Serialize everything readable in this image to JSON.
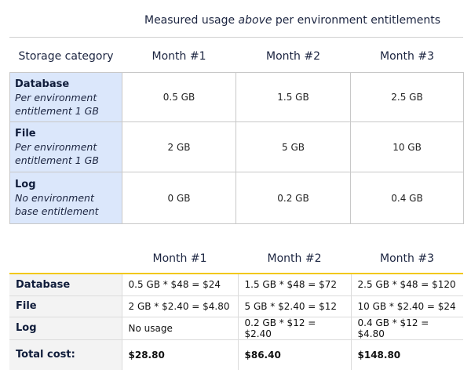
{
  "usage_table": {
    "caption": {
      "before": "Measured usage ",
      "emphasis": "above",
      "after": " per environment entitlements"
    },
    "columns": [
      "Storage category",
      "Month #1",
      "Month #2",
      "Month #3"
    ],
    "rows": [
      {
        "name": "Database",
        "note": "Per environment entitlement 1 GB",
        "values": [
          "0.5 GB",
          "1.5 GB",
          "2.5 GB"
        ]
      },
      {
        "name": "File",
        "note": "Per environment entitlement 1 GB",
        "values": [
          "2 GB",
          "5 GB",
          "10 GB"
        ]
      },
      {
        "name": "Log",
        "note": "No environment base entitlement",
        "values": [
          "0 GB",
          "0.2 GB",
          "0.4 GB"
        ]
      }
    ]
  },
  "cost_table": {
    "columns": [
      "Month #1",
      "Month #2",
      "Month #3"
    ],
    "rows": [
      {
        "name": "Database",
        "cells": [
          "0.5 GB * $48 = $24",
          "1.5 GB * $48 = $72",
          "2.5 GB * $48 = $120"
        ]
      },
      {
        "name": "File",
        "cells": [
          "2 GB * $2.40 = $4.80",
          "5 GB * $2.40 = $12",
          "10 GB * $2.40 = $24"
        ]
      },
      {
        "name": "Log",
        "cells": [
          "No usage",
          "0.2 GB * $12 = $2.40",
          "0.4 GB * $12 = $4.80"
        ]
      }
    ],
    "total": {
      "label": "Total cost:",
      "cells": [
        "$28.80",
        "$86.40",
        "$148.80"
      ]
    }
  }
}
